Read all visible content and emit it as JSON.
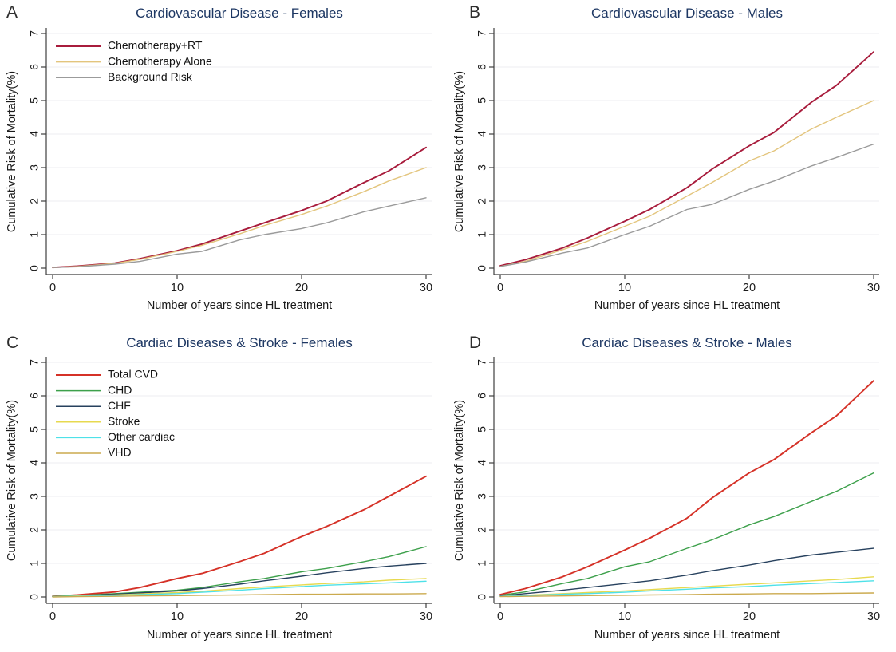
{
  "style": {
    "background": "#ffffff",
    "grid_color": "#eceef1",
    "axis_color": "#3f3f3f",
    "tick_text_color": "#1a1a1a",
    "title_color": "#1d3763",
    "legend_text_color": "#111111"
  },
  "chart_data": [
    {
      "type": "line",
      "panel_letter": "A",
      "title": "Cardiovascular Disease - Females",
      "xlabel": "Number of years since HL treatment",
      "ylabel": "Cumulative Risk of Mortality(%)",
      "xlim": [
        0,
        30
      ],
      "ylim": [
        0,
        7
      ],
      "x_ticks": [
        "0",
        "10",
        "20",
        "30"
      ],
      "y_ticks": [
        "0",
        "1",
        "2",
        "3",
        "4",
        "5",
        "6",
        "7"
      ],
      "grid": "horizontal",
      "legend_position": "top-left-inside",
      "show_legend": true,
      "x": [
        0,
        2,
        5,
        7,
        10,
        12,
        15,
        17,
        20,
        22,
        25,
        27,
        30
      ],
      "series": [
        {
          "name": "Chemotherapy+RT",
          "color": "#a81c3c",
          "values": [
            0.02,
            0.06,
            0.15,
            0.28,
            0.52,
            0.72,
            1.1,
            1.35,
            1.72,
            2.0,
            2.55,
            2.9,
            3.6
          ]
        },
        {
          "name": "Chemotherapy Alone",
          "color": "#e3c57d",
          "values": [
            0.02,
            0.05,
            0.14,
            0.26,
            0.5,
            0.68,
            1.02,
            1.27,
            1.6,
            1.85,
            2.28,
            2.6,
            3.0
          ]
        },
        {
          "name": "Background Risk",
          "color": "#9b9b9b",
          "values": [
            0.02,
            0.04,
            0.12,
            0.2,
            0.42,
            0.5,
            0.84,
            1.0,
            1.18,
            1.35,
            1.68,
            1.85,
            2.1
          ]
        }
      ]
    },
    {
      "type": "line",
      "panel_letter": "B",
      "title": "Cardiovascular Disease - Males",
      "xlabel": "Number of years since HL treatment",
      "ylabel": "Cumulative Risk of Mortality(%)",
      "xlim": [
        0,
        30
      ],
      "ylim": [
        0,
        7
      ],
      "x_ticks": [
        "0",
        "10",
        "20",
        "30"
      ],
      "y_ticks": [
        "0",
        "1",
        "2",
        "3",
        "4",
        "5",
        "6",
        "7"
      ],
      "grid": "horizontal",
      "show_legend": false,
      "x": [
        0,
        2,
        5,
        7,
        10,
        12,
        15,
        17,
        20,
        22,
        25,
        27,
        30
      ],
      "series": [
        {
          "name": "Chemotherapy+RT",
          "color": "#a81c3c",
          "values": [
            0.07,
            0.25,
            0.6,
            0.9,
            1.4,
            1.75,
            2.4,
            2.95,
            3.65,
            4.05,
            4.95,
            5.45,
            6.45
          ]
        },
        {
          "name": "Chemotherapy Alone",
          "color": "#e3c57d",
          "values": [
            0.05,
            0.2,
            0.55,
            0.8,
            1.25,
            1.55,
            2.15,
            2.55,
            3.2,
            3.5,
            4.15,
            4.5,
            5.0
          ]
        },
        {
          "name": "Background Risk",
          "color": "#9b9b9b",
          "values": [
            0.05,
            0.18,
            0.45,
            0.6,
            1.0,
            1.25,
            1.75,
            1.9,
            2.35,
            2.6,
            3.05,
            3.3,
            3.7
          ]
        }
      ]
    },
    {
      "type": "line",
      "panel_letter": "C",
      "title": "Cardiac Diseases & Stroke - Females",
      "xlabel": "Number of years since HL treatment",
      "ylabel": "Cumulative Risk of Mortality(%)",
      "xlim": [
        0,
        30
      ],
      "ylim": [
        0,
        7
      ],
      "x_ticks": [
        "0",
        "10",
        "20",
        "30"
      ],
      "y_ticks": [
        "0",
        "1",
        "2",
        "3",
        "4",
        "5",
        "6",
        "7"
      ],
      "grid": "horizontal",
      "legend_position": "top-left-inside",
      "show_legend": true,
      "x": [
        0,
        2,
        5,
        7,
        10,
        12,
        15,
        17,
        20,
        22,
        25,
        27,
        30
      ],
      "series": [
        {
          "name": "Total CVD",
          "color": "#d53127",
          "values": [
            0.02,
            0.06,
            0.15,
            0.28,
            0.55,
            0.7,
            1.05,
            1.3,
            1.8,
            2.1,
            2.6,
            3.0,
            3.6
          ]
        },
        {
          "name": "CHD",
          "color": "#3da04b",
          "values": [
            0.02,
            0.04,
            0.1,
            0.14,
            0.2,
            0.28,
            0.45,
            0.55,
            0.75,
            0.85,
            1.05,
            1.2,
            1.5
          ]
        },
        {
          "name": "CHF",
          "color": "#27415e",
          "values": [
            0.01,
            0.03,
            0.08,
            0.12,
            0.18,
            0.25,
            0.38,
            0.48,
            0.62,
            0.72,
            0.85,
            0.92,
            1.0
          ]
        },
        {
          "name": "Stroke",
          "color": "#e7d94f",
          "values": [
            0.01,
            0.03,
            0.06,
            0.09,
            0.13,
            0.17,
            0.25,
            0.3,
            0.36,
            0.4,
            0.45,
            0.5,
            0.55
          ]
        },
        {
          "name": "Other cardiac",
          "color": "#4ee1e8",
          "values": [
            0.01,
            0.02,
            0.05,
            0.07,
            0.1,
            0.14,
            0.2,
            0.25,
            0.31,
            0.35,
            0.39,
            0.42,
            0.47
          ]
        },
        {
          "name": "VHD",
          "color": "#cbaa4e",
          "values": [
            0.0,
            0.01,
            0.02,
            0.03,
            0.04,
            0.05,
            0.06,
            0.07,
            0.08,
            0.08,
            0.09,
            0.09,
            0.1
          ]
        }
      ]
    },
    {
      "type": "line",
      "panel_letter": "D",
      "title": "Cardiac Diseases & Stroke - Males",
      "xlabel": "Number of years since HL treatment",
      "ylabel": "Cumulative Risk of Mortality(%)",
      "xlim": [
        0,
        30
      ],
      "ylim": [
        0,
        7
      ],
      "x_ticks": [
        "0",
        "10",
        "20",
        "30"
      ],
      "y_ticks": [
        "0",
        "1",
        "2",
        "3",
        "4",
        "5",
        "6",
        "7"
      ],
      "grid": "horizontal",
      "show_legend": false,
      "x": [
        0,
        2,
        5,
        7,
        10,
        12,
        15,
        17,
        20,
        22,
        25,
        27,
        30
      ],
      "series": [
        {
          "name": "Total CVD",
          "color": "#d53127",
          "values": [
            0.07,
            0.25,
            0.6,
            0.9,
            1.4,
            1.75,
            2.35,
            2.95,
            3.7,
            4.1,
            4.9,
            5.4,
            6.45
          ]
        },
        {
          "name": "CHD",
          "color": "#3da04b",
          "values": [
            0.05,
            0.15,
            0.4,
            0.55,
            0.9,
            1.05,
            1.45,
            1.7,
            2.15,
            2.4,
            2.85,
            3.15,
            3.7
          ]
        },
        {
          "name": "CHF",
          "color": "#27415e",
          "values": [
            0.03,
            0.1,
            0.2,
            0.28,
            0.4,
            0.48,
            0.65,
            0.78,
            0.95,
            1.08,
            1.25,
            1.33,
            1.45
          ]
        },
        {
          "name": "Stroke",
          "color": "#e7d94f",
          "values": [
            0.02,
            0.05,
            0.1,
            0.13,
            0.18,
            0.22,
            0.28,
            0.32,
            0.38,
            0.42,
            0.48,
            0.52,
            0.6
          ]
        },
        {
          "name": "Other cardiac",
          "color": "#4ee1e8",
          "values": [
            0.02,
            0.04,
            0.08,
            0.1,
            0.14,
            0.18,
            0.23,
            0.27,
            0.31,
            0.35,
            0.4,
            0.43,
            0.48
          ]
        },
        {
          "name": "VHD",
          "color": "#cbaa4e",
          "values": [
            0.01,
            0.02,
            0.03,
            0.04,
            0.05,
            0.06,
            0.07,
            0.08,
            0.09,
            0.1,
            0.1,
            0.11,
            0.12
          ]
        }
      ]
    }
  ]
}
